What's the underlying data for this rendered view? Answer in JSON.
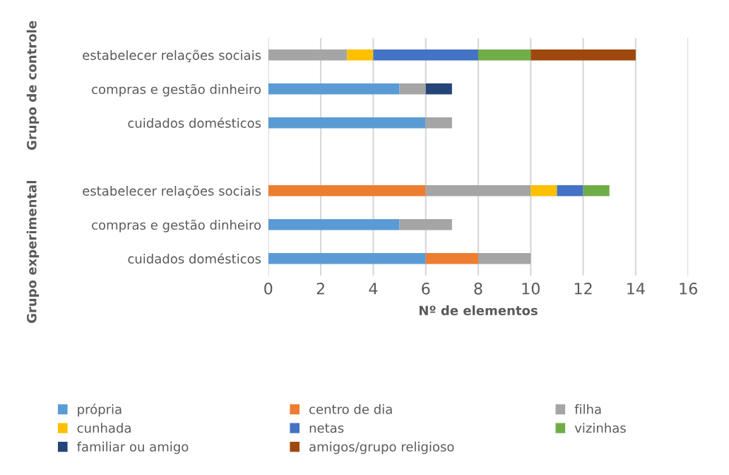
{
  "chart_data": {
    "type": "bar",
    "orientation": "horizontal",
    "stacked": true,
    "xlabel": "Nº de elementos",
    "categories": [
      "estabelecer relações sociais",
      "compras e gestão dinheiro",
      "cuidados domésticos",
      null,
      "estabelecer relações sociais",
      "compras e gestão dinheiro",
      "cuidados domésticos"
    ],
    "annotations": [
      "Grupo de controle",
      "Grupo experimental"
    ],
    "series": [
      {
        "name": "própria",
        "color": "#5b9bd5",
        "values": [
          null,
          5,
          6,
          null,
          null,
          5,
          6
        ]
      },
      {
        "name": "centro de dia",
        "color": "#ed7d31",
        "values": [
          null,
          null,
          null,
          null,
          6,
          null,
          2
        ]
      },
      {
        "name": "filha",
        "color": "#a5a5a5",
        "values": [
          3,
          1,
          1,
          null,
          4,
          2,
          2
        ]
      },
      {
        "name": "cunhada",
        "color": "#ffc000",
        "values": [
          1,
          null,
          null,
          null,
          1,
          null,
          null
        ]
      },
      {
        "name": "netas",
        "color": "#4472c4",
        "values": [
          4,
          null,
          null,
          null,
          1,
          null,
          null
        ]
      },
      {
        "name": "vizinhas",
        "color": "#70ad47",
        "values": [
          2,
          null,
          null,
          null,
          1,
          null,
          null
        ]
      },
      {
        "name": "familiar ou amigo",
        "color": "#264478",
        "values": [
          null,
          1,
          null,
          null,
          null,
          null,
          null
        ]
      },
      {
        "name": "amigos/grupo religioso",
        "color": "#9e480e",
        "values": [
          4,
          null,
          null,
          null,
          null,
          null,
          null
        ]
      }
    ],
    "xlim": [
      0,
      16
    ],
    "xticks": [
      0,
      2,
      4,
      6,
      8,
      10,
      12,
      14,
      16
    ],
    "grid": "x",
    "legend": "bottom"
  }
}
